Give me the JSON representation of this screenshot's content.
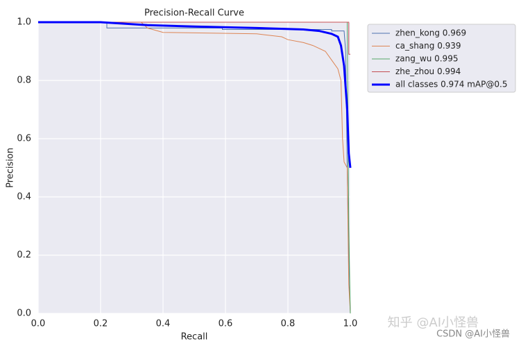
{
  "chart_data": {
    "type": "line",
    "title": "Precision-Recall Curve",
    "x_label": "Recall",
    "y_label": "Precision",
    "xlim": [
      0,
      1
    ],
    "ylim": [
      0,
      1
    ],
    "xticks": [
      {
        "value": 0,
        "label": "0.0"
      },
      0.2,
      0.4,
      0.6,
      0.8,
      {
        "value": 1,
        "label": "1.0"
      }
    ],
    "yticks": [
      {
        "value": 0,
        "label": "0.0"
      },
      0.2,
      0.4,
      0.6,
      0.8,
      {
        "value": 1,
        "label": "1.0"
      }
    ],
    "grid": true,
    "legend": "outside-upper-right",
    "series": [
      {
        "name": "zhen_kong 0.969",
        "color": "#4c72b0",
        "width": 1,
        "x": [
          0,
          0.22,
          0.22,
          0.59,
          0.59,
          0.94,
          0.94,
          0.98,
          0.985,
          0.99,
          0.995,
          1.0
        ],
        "values": [
          1,
          1,
          0.98,
          0.98,
          0.975,
          0.975,
          0.97,
          0.97,
          0.9,
          0.5,
          0.2,
          0
        ]
      },
      {
        "name": "ca_shang 0.939",
        "color": "#dd8452",
        "width": 1,
        "x": [
          0,
          0.33,
          0.35,
          0.4,
          0.7,
          0.78,
          0.8,
          0.85,
          0.88,
          0.92,
          0.94,
          0.96,
          0.97,
          0.975,
          0.98,
          0.99,
          0.995,
          1.0
        ],
        "values": [
          1,
          1,
          0.98,
          0.965,
          0.96,
          0.95,
          0.94,
          0.93,
          0.92,
          0.9,
          0.87,
          0.84,
          0.8,
          0.6,
          0.52,
          0.5,
          0.1,
          0
        ]
      },
      {
        "name": "zang_wu 0.995",
        "color": "#55a868",
        "width": 1,
        "x": [
          0,
          0.99,
          0.995,
          1.0
        ],
        "values": [
          1,
          1,
          0.3,
          0
        ]
      },
      {
        "name": "zhe_zhou 0.994",
        "color": "#c44e52",
        "width": 1,
        "x": [
          0,
          0.995,
          0.995,
          1.0
        ],
        "values": [
          1,
          1,
          0.89,
          0.89
        ]
      },
      {
        "name": "all classes 0.974 mAP@0.5",
        "color": "#0000ff",
        "width": 3,
        "x": [
          0,
          0.2,
          0.35,
          0.5,
          0.7,
          0.85,
          0.9,
          0.94,
          0.96,
          0.97,
          0.98,
          0.99,
          0.995,
          1.0
        ],
        "values": [
          1,
          1,
          0.99,
          0.985,
          0.98,
          0.975,
          0.97,
          0.96,
          0.95,
          0.92,
          0.85,
          0.7,
          0.55,
          0.5
        ]
      }
    ],
    "watermarks": [
      "知乎 @AI小怪兽",
      "CSDN @AI小怪兽"
    ]
  }
}
